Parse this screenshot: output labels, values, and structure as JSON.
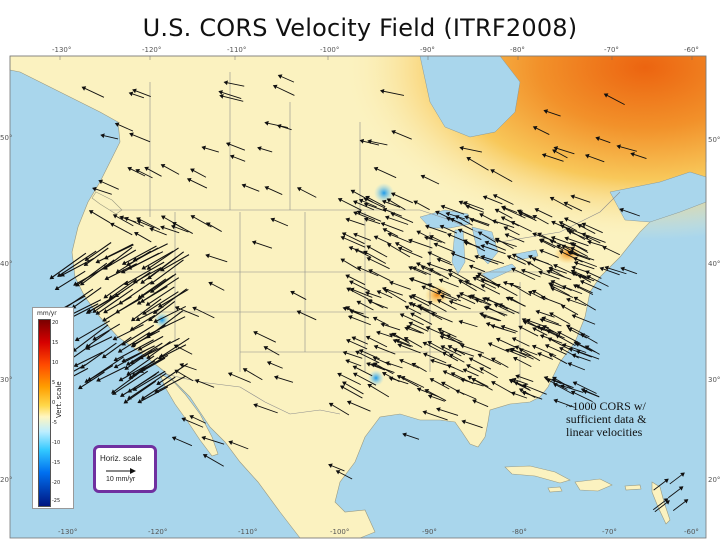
{
  "slide": {
    "title": "U.S. CORS Velocity Field (ITRF2008)"
  },
  "annotation": {
    "lines": [
      "~1000 CORS w/",
      "sufficient data &",
      "linear velocities"
    ]
  },
  "legend": {
    "unit": "mm/yr",
    "vertical_label": "Vert. scale",
    "ticks": [
      "20",
      "15",
      "10",
      "5",
      "0",
      "-5",
      "-10",
      "-15",
      "-20",
      "-25"
    ],
    "horizontal_label": "Horiz. scale",
    "horizontal_value": "10 mm/yr",
    "highlight_color": "#7030a0"
  },
  "axes": {
    "top_ticks": [
      "-130°",
      "-120°",
      "-110°",
      "-100°",
      "-90°",
      "-80°",
      "-70°",
      "-60°"
    ],
    "bottom_ticks": [
      "-130°",
      "-120°",
      "-110°",
      "-100°",
      "-90°",
      "-80°",
      "-70°",
      "-60°"
    ],
    "left_ticks": [
      "50°",
      "40°",
      "30°",
      "20°"
    ],
    "right_ticks": [
      "50°",
      "40°",
      "30°",
      "20°"
    ]
  },
  "colors": {
    "ocean": "#a9d6ec",
    "land": "#fbf2c0",
    "uplift": "#f39a2a",
    "uplift_strong": "#ec6a10",
    "subsidence": "#3aa7ea",
    "arrow": "#111111"
  }
}
